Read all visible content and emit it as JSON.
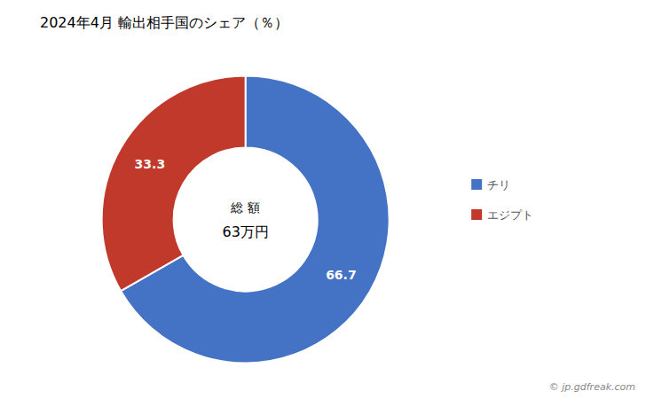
{
  "chart_data": {
    "type": "pie",
    "title": "2024年4月 輸出相手国のシェア（％）",
    "categories": [
      "チリ",
      "エジプト"
    ],
    "values": [
      66.7,
      33.3
    ],
    "colors": [
      "#4472C4",
      "#C0392B"
    ],
    "data_labels": true,
    "legend": "right",
    "annotations": [
      "総 額",
      "63万円",
      "© jp.gdfreak.com"
    ]
  }
}
